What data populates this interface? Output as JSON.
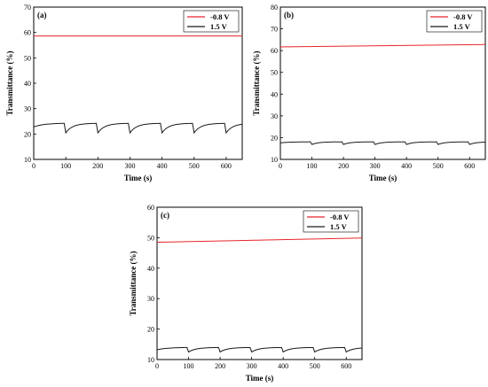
{
  "chart_data": [
    {
      "type": "line",
      "panel_label": "(a)",
      "xlabel": "Time (s)",
      "ylabel": "Transmittance (%)",
      "xlim": [
        0,
        650
      ],
      "ylim": [
        10,
        70
      ],
      "xticks": [
        0,
        100,
        200,
        300,
        400,
        500,
        600
      ],
      "yticks": [
        10,
        20,
        30,
        40,
        50,
        60,
        70
      ],
      "legend_position": "top-right",
      "series": [
        {
          "name": "-0.8 V",
          "color": "#e8262a",
          "shape": "flat",
          "start": 58.6,
          "end": 58.6,
          "period": 100,
          "dip": 0
        },
        {
          "name": "1.5 V",
          "color": "#1a1a1a",
          "shape": "sawtooth",
          "start": 22.8,
          "end": 24.3,
          "period": 100,
          "dip": 2.6
        }
      ]
    },
    {
      "type": "line",
      "panel_label": "(b)",
      "xlabel": "Time (s)",
      "ylabel": "Transmittance (%)",
      "xlim": [
        0,
        650
      ],
      "ylim": [
        10,
        80
      ],
      "xticks": [
        0,
        100,
        200,
        300,
        400,
        500,
        600
      ],
      "yticks": [
        10,
        20,
        30,
        40,
        50,
        60,
        70,
        80
      ],
      "legend_position": "top-right",
      "series": [
        {
          "name": "-0.8 V",
          "color": "#e8262a",
          "shape": "ramp",
          "start": 61.7,
          "end": 62.8,
          "period": 100,
          "dip": 0
        },
        {
          "name": "1.5 V",
          "color": "#1a1a1a",
          "shape": "sawtooth",
          "start": 17.6,
          "end": 18.1,
          "period": 100,
          "dip": 0.8
        }
      ]
    },
    {
      "type": "line",
      "panel_label": "(c)",
      "xlabel": "Time (s)",
      "ylabel": "Transmittance (%)",
      "xlim": [
        0,
        650
      ],
      "ylim": [
        10,
        60
      ],
      "xticks": [
        0,
        100,
        200,
        300,
        400,
        500,
        600
      ],
      "yticks": [
        10,
        20,
        30,
        40,
        50,
        60
      ],
      "legend_position": "top-right",
      "series": [
        {
          "name": "-0.8 V",
          "color": "#e8262a",
          "shape": "ramp",
          "start": 48.5,
          "end": 49.9,
          "period": 100,
          "dip": 0
        },
        {
          "name": "1.5 V",
          "color": "#1a1a1a",
          "shape": "sawtooth",
          "start": 13.2,
          "end": 14.0,
          "period": 100,
          "dip": 0.8
        }
      ]
    }
  ]
}
